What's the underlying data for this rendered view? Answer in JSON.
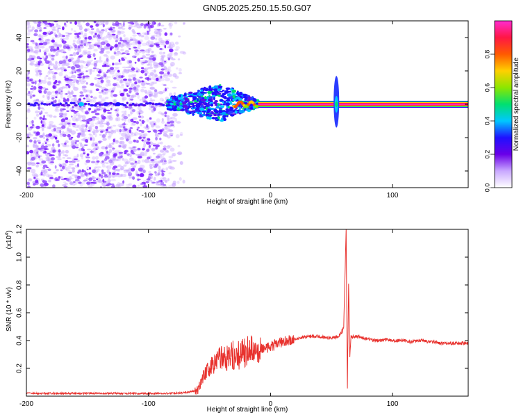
{
  "title": "GN05.2025.250.15.50.G07",
  "chart_data": [
    {
      "type": "heatmap",
      "name": "spectrogram",
      "xlabel": "Height of straight line (km)",
      "ylabel": "Frequency (Hz)",
      "xlim": [
        -200,
        162
      ],
      "ylim": [
        -50,
        50
      ],
      "x_ticks": [
        -200,
        -100,
        0,
        100
      ],
      "x_tick_labels": [
        "-200",
        "-100",
        "0",
        "100"
      ],
      "y_ticks": [
        -40,
        -20,
        0,
        20,
        40
      ],
      "y_tick_labels": [
        "-40",
        "-20",
        "0",
        "20",
        "40"
      ],
      "noise_region_x": [
        -200,
        -70
      ],
      "transition_region_x": [
        -85,
        -10
      ],
      "line_start_x": -10,
      "carrier_frequency": 0,
      "spike_x": 54,
      "spike_freq_range": [
        -14,
        17
      ],
      "colorbar": {
        "label": "Normalized spectral amplitude",
        "range": [
          0,
          1
        ],
        "ticks": [
          0.0,
          0.2,
          0.4,
          0.6,
          0.8
        ],
        "tick_labels": [
          "0.0",
          "0.2",
          "0.4",
          "0.6",
          "0.8"
        ],
        "colors": [
          "#ffffff",
          "#c9a8ff",
          "#6a00e8",
          "#1f10ff",
          "#00c8ff",
          "#00e070",
          "#8ce600",
          "#ffd000",
          "#ff5a00",
          "#ff1744",
          "#ff2bd0"
        ]
      }
    },
    {
      "type": "line",
      "name": "snr",
      "xlabel": "Height of straight line (km)",
      "ylabel": "SNR (10 * v/v)",
      "scale_label": "(x10",
      "scale_exponent": "4",
      "scale_close": ")",
      "xlim": [
        -200,
        162
      ],
      "ylim": [
        0,
        1.2
      ],
      "x_ticks": [
        -200,
        -100,
        0,
        100
      ],
      "x_tick_labels": [
        "-200",
        "-100",
        "0",
        "100"
      ],
      "y_ticks": [
        0.2,
        0.4,
        0.6,
        0.8,
        1.0,
        1.2
      ],
      "y_tick_labels": [
        "0.2",
        "0.4",
        "0.6",
        "0.8",
        "1.0",
        "1.2"
      ],
      "color": "#e8322e",
      "series": [
        {
          "name": "SNR",
          "x": [
            -200,
            -180,
            -160,
            -140,
            -120,
            -100,
            -80,
            -70,
            -60,
            -56,
            -52,
            -48,
            -44,
            -40,
            -36,
            -32,
            -28,
            -24,
            -20,
            -17,
            -14,
            -12,
            -10,
            -6,
            -2,
            0,
            5,
            10,
            15,
            20,
            25,
            30,
            35,
            40,
            45,
            50,
            55,
            58,
            60,
            62,
            63,
            64,
            65,
            66,
            67,
            70,
            75,
            80,
            85,
            90,
            95,
            100,
            105,
            110,
            115,
            120,
            125,
            130,
            135,
            140,
            145,
            150,
            155,
            162
          ],
          "y": [
            0.02,
            0.02,
            0.02,
            0.02,
            0.02,
            0.02,
            0.02,
            0.025,
            0.04,
            0.13,
            0.18,
            0.22,
            0.25,
            0.27,
            0.28,
            0.3,
            0.29,
            0.3,
            0.32,
            0.36,
            0.31,
            0.28,
            0.33,
            0.34,
            0.35,
            0.36,
            0.37,
            0.39,
            0.4,
            0.41,
            0.42,
            0.43,
            0.43,
            0.43,
            0.42,
            0.42,
            0.43,
            0.45,
            0.5,
            1.2,
            0.07,
            0.8,
            0.3,
            0.43,
            0.42,
            0.43,
            0.42,
            0.41,
            0.4,
            0.4,
            0.41,
            0.4,
            0.4,
            0.4,
            0.39,
            0.4,
            0.4,
            0.39,
            0.39,
            0.38,
            0.38,
            0.38,
            0.38,
            0.38
          ]
        }
      ]
    }
  ]
}
